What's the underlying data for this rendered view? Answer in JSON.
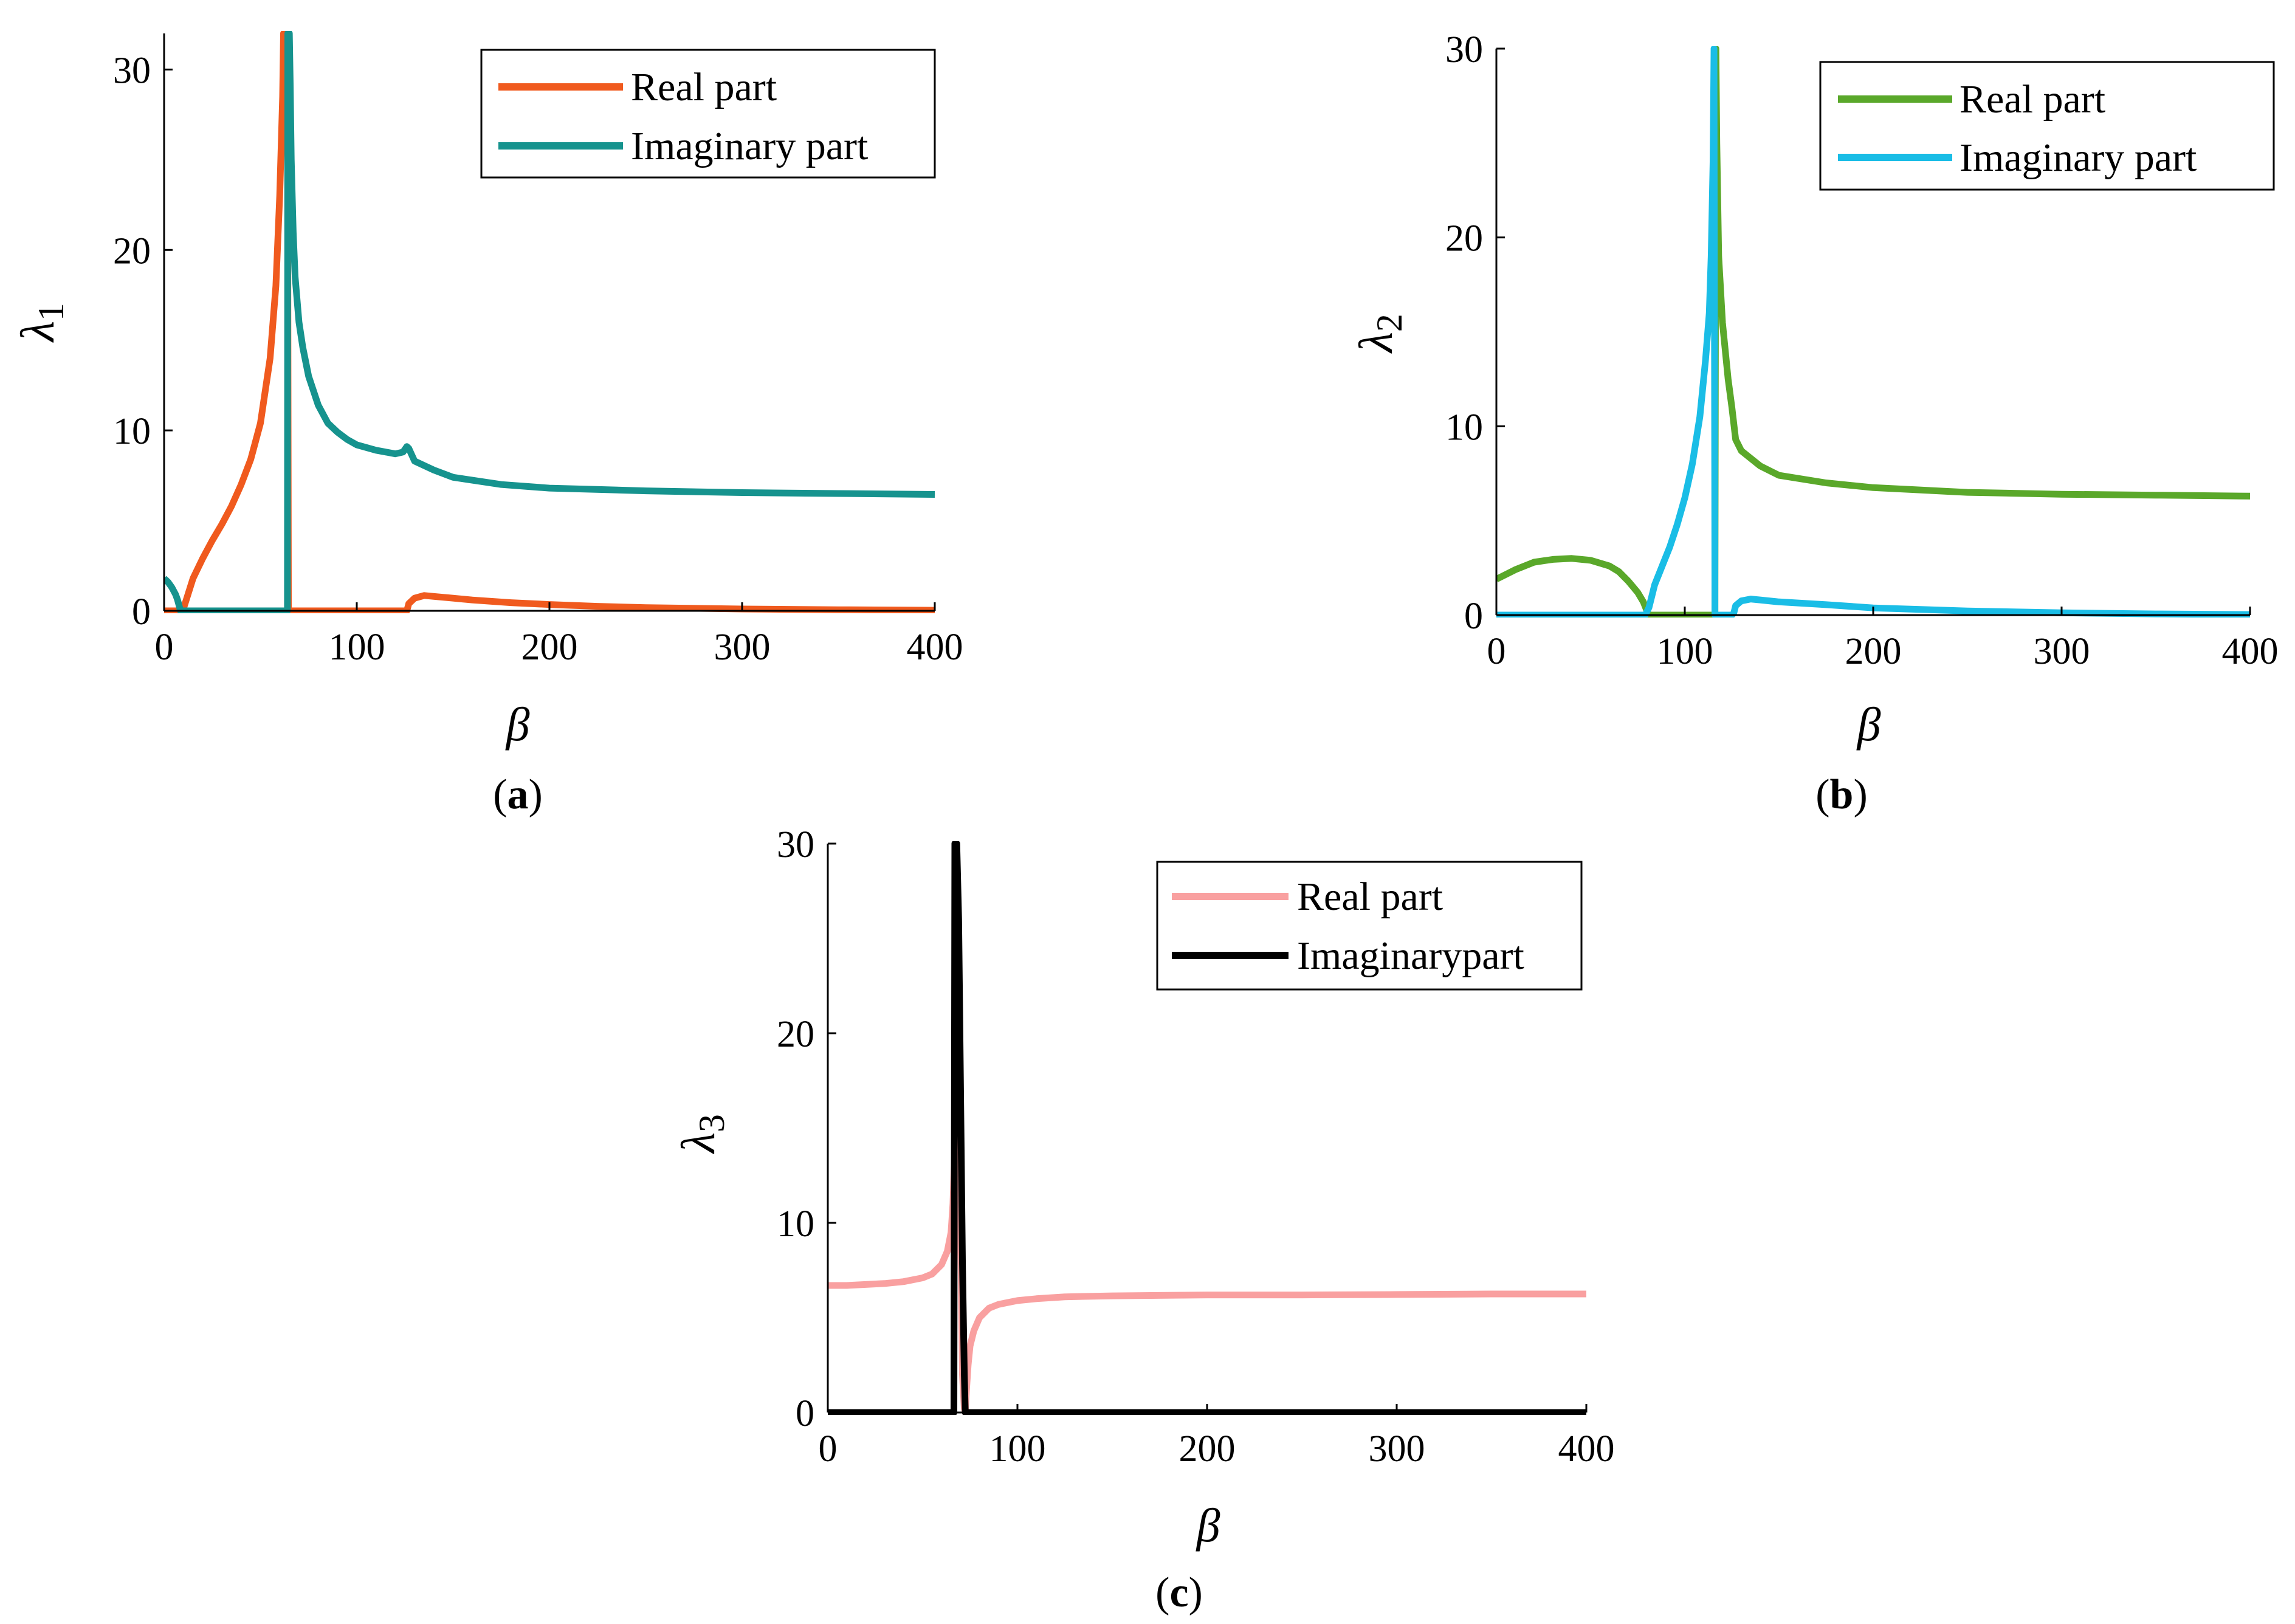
{
  "chart_data": [
    {
      "type": "line",
      "panel_label": "(a)",
      "panel_open": "(",
      "panel_letter": "a",
      "panel_close": ")",
      "xlabel": "β",
      "ylabel_symbol": "λ",
      "ylabel_subscript": "1",
      "xlim": [
        0,
        400
      ],
      "ylim": [
        0,
        32
      ],
      "xticks": [
        0,
        100,
        200,
        300,
        400
      ],
      "yticks": [
        0,
        10,
        20,
        30
      ],
      "legend_position": "top-right",
      "series": [
        {
          "name": "Real part",
          "color": "#f05a1e",
          "x": [
            0,
            8,
            9,
            10,
            15,
            20,
            25,
            30,
            35,
            40,
            45,
            50,
            55,
            58,
            60,
            61.5,
            62,
            62.2,
            63,
            64,
            64.5,
            65,
            70,
            80,
            90,
            100,
            110,
            120,
            126,
            127,
            130,
            135,
            140,
            150,
            160,
            180,
            200,
            225,
            250,
            300,
            350,
            400
          ],
          "y": [
            0,
            0,
            0,
            0.1,
            1.8,
            2.9,
            3.9,
            4.8,
            5.8,
            7.0,
            8.4,
            10.4,
            14.0,
            18.0,
            23.0,
            28.5,
            32,
            32,
            32,
            32,
            0,
            0,
            0,
            0,
            0,
            0,
            0,
            0,
            0,
            0.4,
            0.7,
            0.85,
            0.8,
            0.7,
            0.6,
            0.45,
            0.35,
            0.25,
            0.18,
            0.1,
            0.06,
            0.03
          ]
        },
        {
          "name": "Imaginary part",
          "color": "#16938e",
          "x": [
            0,
            2,
            4,
            6,
            7,
            8,
            8.5,
            9,
            20,
            40,
            60,
            64,
            64.2,
            64.5,
            65,
            65.5,
            66,
            67,
            68,
            70,
            72,
            75,
            80,
            85,
            90,
            95,
            100,
            110,
            120,
            124,
            126,
            127,
            130,
            140,
            150,
            175,
            200,
            250,
            300,
            350,
            400
          ],
          "y": [
            1.8,
            1.6,
            1.3,
            0.9,
            0.6,
            0.2,
            0,
            0,
            0,
            0,
            0,
            0,
            32,
            32,
            32,
            29,
            25,
            21,
            18.5,
            16,
            14.6,
            13.0,
            11.4,
            10.4,
            9.9,
            9.5,
            9.2,
            8.9,
            8.7,
            8.8,
            9.1,
            9.0,
            8.3,
            7.8,
            7.4,
            7.0,
            6.8,
            6.65,
            6.55,
            6.5,
            6.45
          ]
        }
      ]
    },
    {
      "type": "line",
      "panel_label": "(b)",
      "panel_open": "(",
      "panel_letter": "b",
      "panel_close": ")",
      "xlabel": "β",
      "ylabel_symbol": "λ",
      "ylabel_subscript": "2",
      "xlim": [
        0,
        400
      ],
      "ylim": [
        0,
        30
      ],
      "xticks": [
        0,
        100,
        200,
        300,
        400
      ],
      "yticks": [
        0,
        10,
        20,
        30
      ],
      "legend_position": "top-right",
      "series": [
        {
          "name": "Real part",
          "color": "#5aa82a",
          "x": [
            0,
            10,
            20,
            30,
            40,
            50,
            60,
            65,
            70,
            75,
            78,
            80,
            81,
            90,
            100,
            110,
            115,
            116,
            116.5,
            117,
            118,
            120,
            123,
            125,
            127,
            130,
            140,
            150,
            175,
            200,
            250,
            300,
            350,
            400
          ],
          "y": [
            1.9,
            2.4,
            2.8,
            2.95,
            3.0,
            2.9,
            2.6,
            2.3,
            1.8,
            1.2,
            0.7,
            0.2,
            0,
            0,
            0,
            0,
            0,
            0,
            30,
            25,
            19,
            15.5,
            12.5,
            11.0,
            9.3,
            8.7,
            7.9,
            7.4,
            7.0,
            6.75,
            6.5,
            6.4,
            6.35,
            6.3
          ]
        },
        {
          "name": "Imaginary part",
          "color": "#1abde6",
          "x": [
            0,
            40,
            79,
            81,
            84,
            88,
            92,
            96,
            100,
            104,
            108,
            111,
            113,
            114,
            115,
            115.5,
            116,
            117,
            120,
            125,
            126,
            127,
            130,
            135,
            140,
            150,
            175,
            200,
            250,
            300,
            350,
            400
          ],
          "y": [
            0,
            0,
            0,
            0.4,
            1.6,
            2.6,
            3.6,
            4.8,
            6.2,
            8.0,
            10.5,
            13.5,
            16.0,
            19.0,
            24.0,
            30,
            0,
            0,
            0,
            0,
            0.1,
            0.5,
            0.75,
            0.85,
            0.8,
            0.7,
            0.55,
            0.38,
            0.22,
            0.12,
            0.06,
            0.03
          ]
        }
      ]
    },
    {
      "type": "line",
      "panel_label": "(c)",
      "panel_open": "(",
      "panel_letter": "c",
      "panel_close": ")",
      "xlabel": "β",
      "ylabel_symbol": "λ",
      "ylabel_subscript": "3",
      "xlim": [
        0,
        400
      ],
      "ylim": [
        0,
        30
      ],
      "xticks": [
        0,
        100,
        200,
        300,
        400
      ],
      "yticks": [
        0,
        10,
        20,
        30
      ],
      "legend_position": "top-right",
      "series": [
        {
          "name": "Real part",
          "color": "#f9a0a0",
          "x": [
            0,
            10,
            20,
            30,
            40,
            50,
            55,
            60,
            63,
            65,
            66,
            67,
            68,
            68.5,
            69,
            70,
            71,
            72,
            72.5,
            73,
            74,
            75,
            77,
            80,
            85,
            90,
            100,
            110,
            125,
            150,
            200,
            250,
            300,
            350,
            400
          ],
          "y": [
            6.7,
            6.7,
            6.75,
            6.8,
            6.9,
            7.1,
            7.3,
            7.8,
            8.5,
            9.5,
            11.0,
            14.0,
            19.0,
            24.0,
            18.0,
            10.0,
            2.0,
            0.2,
            0,
            1.0,
            2.5,
            3.5,
            4.3,
            5.0,
            5.5,
            5.7,
            5.9,
            6.0,
            6.1,
            6.15,
            6.2,
            6.2,
            6.22,
            6.25,
            6.25
          ]
        },
        {
          "name": "Imaginarypart",
          "color": "#000000",
          "x": [
            0,
            30,
            60,
            66.5,
            67,
            68,
            69,
            70,
            71,
            72,
            72.5,
            73,
            100,
            200,
            300,
            400
          ],
          "y": [
            0,
            0,
            0,
            0,
            30,
            30,
            26,
            17,
            8,
            2,
            0,
            0,
            0,
            0,
            0,
            0
          ]
        }
      ]
    }
  ]
}
